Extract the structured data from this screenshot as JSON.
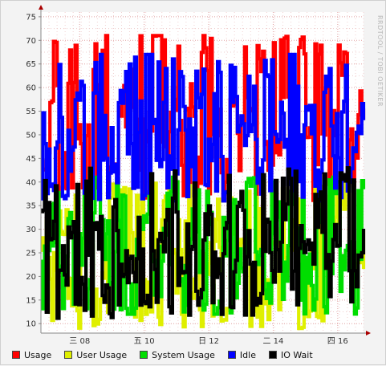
{
  "watermark": "RRDTOOL / TOBI OETIKER",
  "chart_data": {
    "type": "line",
    "x_ticks": [
      "三 08",
      "五 10",
      "日 12",
      "二 14",
      "四 16"
    ],
    "y_ticks": [
      "10",
      "15",
      "20",
      "25",
      "30",
      "35",
      "40",
      "45",
      "50",
      "55",
      "60",
      "65",
      "70",
      "75"
    ],
    "ylim": [
      8,
      76
    ],
    "grid": true,
    "legend_position": "bottom",
    "series": [
      {
        "name": "Usage",
        "color": "#ff0000",
        "samples": 180,
        "center": 49,
        "spread": 8,
        "min": 36,
        "max": 71,
        "seed": 11,
        "values_approx": [
          48,
          55,
          43,
          60,
          52,
          46,
          64,
          50,
          44,
          57,
          61,
          47,
          53,
          70,
          45,
          58,
          49,
          55,
          42,
          66,
          51,
          46,
          59,
          48,
          54,
          62,
          44,
          50,
          57,
          47,
          68,
          52,
          46,
          55,
          49,
          63,
          45,
          53
        ]
      },
      {
        "name": "User Usage",
        "color": "#dfef00",
        "samples": 180,
        "center": 26,
        "spread": 6,
        "min": 9,
        "max": 40,
        "seed": 23,
        "values_approx": [
          28,
          22,
          33,
          18,
          26,
          30,
          14,
          24,
          37,
          20,
          27,
          31,
          16,
          25,
          34,
          21,
          29,
          19,
          35,
          23,
          28,
          15,
          32,
          26,
          22,
          36,
          18,
          27,
          24,
          30,
          9,
          25,
          33,
          21,
          28,
          38,
          20,
          26
        ]
      },
      {
        "name": "System Usage",
        "color": "#00dd00",
        "samples": 180,
        "center": 27,
        "spread": 7,
        "min": 12,
        "max": 41,
        "seed": 37,
        "values_approx": [
          26,
          31,
          20,
          35,
          24,
          18,
          38,
          27,
          22,
          33,
          15,
          29,
          36,
          21,
          25,
          39,
          19,
          30,
          24,
          34,
          13,
          27,
          32,
          22,
          37,
          26,
          17,
          31,
          23,
          35,
          28,
          20,
          33,
          25,
          40,
          22,
          29,
          26
        ]
      },
      {
        "name": "Idle",
        "color": "#0000ff",
        "samples": 180,
        "center": 50,
        "spread": 8,
        "min": 36,
        "max": 67,
        "seed": 53,
        "values_approx": [
          52,
          44,
          60,
          48,
          55,
          40,
          63,
          50,
          46,
          58,
          42,
          54,
          65,
          47,
          51,
          38,
          57,
          49,
          61,
          45,
          53,
          41,
          59,
          50,
          56,
          43,
          62,
          48,
          52,
          66,
          46,
          55,
          40,
          58,
          51,
          60,
          47,
          53
        ]
      },
      {
        "name": "IO Wait",
        "color": "#000000",
        "samples": 180,
        "center": 26,
        "spread": 6,
        "min": 11,
        "max": 43,
        "seed": 71,
        "values_approx": [
          36,
          27,
          22,
          31,
          18,
          25,
          29,
          14,
          33,
          24,
          20,
          28,
          12,
          26,
          30,
          38,
          21,
          27,
          16,
          32,
          23,
          28,
          19,
          35,
          25,
          13,
          29,
          22,
          31,
          17,
          26,
          24,
          34,
          20,
          27,
          42,
          18,
          26
        ]
      }
    ]
  }
}
